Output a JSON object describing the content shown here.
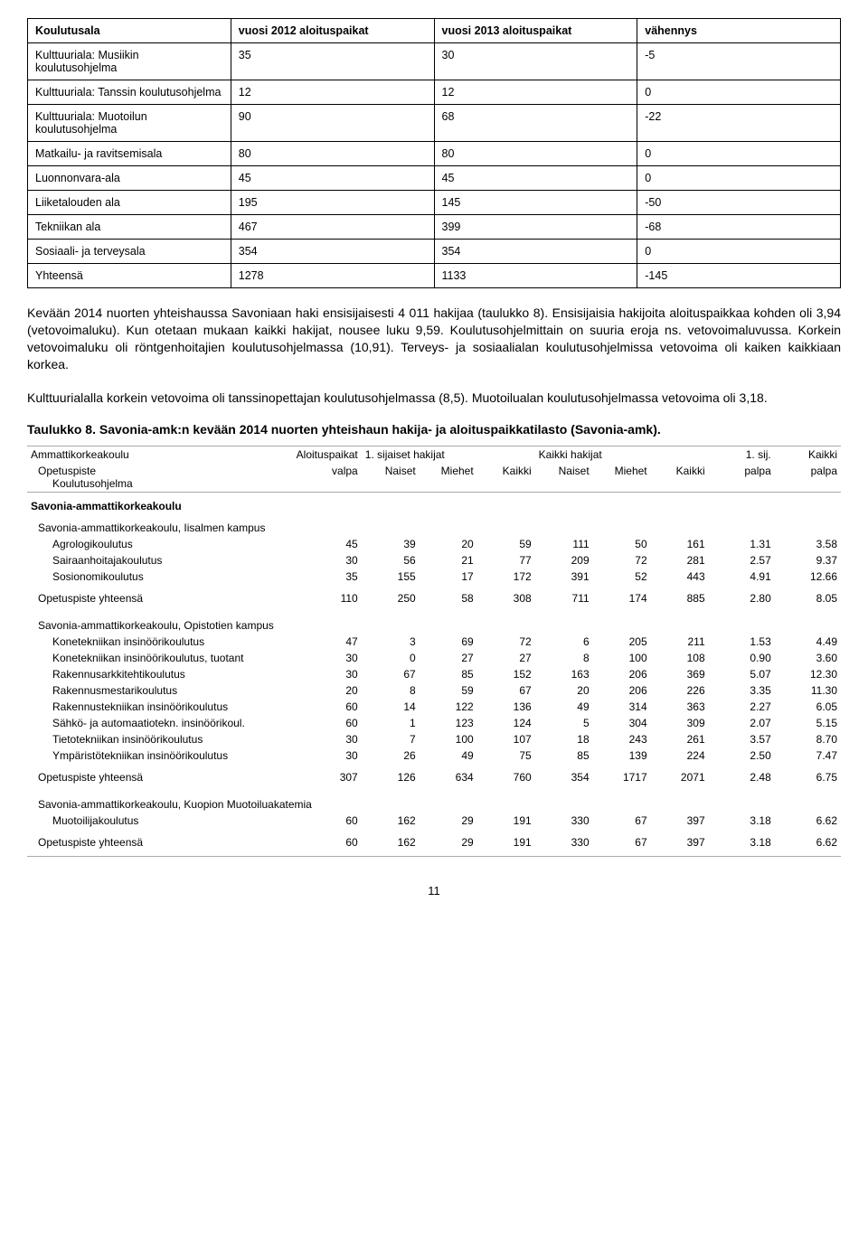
{
  "table1": {
    "columns": [
      "Koulutusala",
      "vuosi 2012 aloituspaikat",
      "vuosi 2013 aloituspaikat",
      "vähennys"
    ],
    "rows": [
      [
        "Kulttuuriala: Musiikin koulutusohjelma",
        "35",
        "30",
        "-5"
      ],
      [
        "Kulttuuriala: Tanssin koulutusohjelma",
        "12",
        "12",
        "0"
      ],
      [
        "Kulttuuriala: Muotoilun koulutusohjelma",
        "90",
        "68",
        "-22"
      ],
      [
        "Matkailu- ja ravitsemisala",
        "80",
        "80",
        "0"
      ],
      [
        "Luonnonvara-ala",
        "45",
        "45",
        "0"
      ],
      [
        "Liiketalouden ala",
        "195",
        "145",
        "-50"
      ],
      [
        "Tekniikan ala",
        "467",
        "399",
        "-68"
      ],
      [
        "Sosiaali- ja terveysala",
        "354",
        "354",
        "0"
      ],
      [
        "Yhteensä",
        "1278",
        "1133",
        "-145"
      ]
    ]
  },
  "para1": "Kevään 2014 nuorten yhteishaussa Savoniaan haki ensisijaisesti 4 011 hakijaa (taulukko 8). Ensisijaisia hakijoita aloituspaikkaa kohden oli 3,94 (vetovoimaluku). Kun otetaan mukaan kaikki hakijat, nousee luku 9,59. Koulutusohjelmittain on suuria eroja ns. vetovoimaluvussa. Korkein vetovoimaluku oli röntgenhoitajien koulutusohjelmassa (10,91). Terveys- ja sosiaalialan koulutusohjelmissa vetovoima oli kaiken kaikkiaan korkea.",
  "para2": "Kulttuurialalla korkein vetovoima oli tanssinopettajan koulutusohjelmassa (8,5). Muotoilualan koulutusohjelmassa vetovoima oli 3,18.",
  "caption": "Taulukko 8. Savonia-amk:n kevään 2014 nuorten yhteishaun hakija- ja aloituspaikkatilasto (Savonia-amk).",
  "table2": {
    "head_lines": {
      "l1": [
        "Ammattikorkeakoulu",
        "Aloituspaikat",
        "1. sijaiset hakijat",
        "",
        "",
        "Kaikki hakijat",
        "",
        "",
        "1. sij.",
        "Kaikki"
      ],
      "l2": [
        "Opetuspiste",
        "valpa",
        "Naiset",
        "Miehet",
        "Kaikki",
        "Naiset",
        "Miehet",
        "Kaikki",
        "palpa",
        "palpa"
      ],
      "l3": "Koulutusohjelma"
    },
    "school": "Savonia-ammattikorkeakoulu",
    "groups": [
      {
        "title": "Savonia-ammattikorkeakoulu, Iisalmen kampus",
        "rows": [
          [
            "Agrologikoulutus",
            "45",
            "39",
            "20",
            "59",
            "111",
            "50",
            "161",
            "1.31",
            "3.58"
          ],
          [
            "Sairaanhoitajakoulutus",
            "30",
            "56",
            "21",
            "77",
            "209",
            "72",
            "281",
            "2.57",
            "9.37"
          ],
          [
            "Sosionomikoulutus",
            "35",
            "155",
            "17",
            "172",
            "391",
            "52",
            "443",
            "4.91",
            "12.66"
          ]
        ],
        "subtotal": [
          "Opetuspiste yhteensä",
          "110",
          "250",
          "58",
          "308",
          "711",
          "174",
          "885",
          "2.80",
          "8.05"
        ]
      },
      {
        "title": "Savonia-ammattikorkeakoulu, Opistotien kampus",
        "rows": [
          [
            "Konetekniikan insinöörikoulutus",
            "47",
            "3",
            "69",
            "72",
            "6",
            "205",
            "211",
            "1.53",
            "4.49"
          ],
          [
            "Konetekniikan insinöörikoulutus, tuotant",
            "30",
            "0",
            "27",
            "27",
            "8",
            "100",
            "108",
            "0.90",
            "3.60"
          ],
          [
            "Rakennusarkkitehtikoulutus",
            "30",
            "67",
            "85",
            "152",
            "163",
            "206",
            "369",
            "5.07",
            "12.30"
          ],
          [
            "Rakennusmestarikoulutus",
            "20",
            "8",
            "59",
            "67",
            "20",
            "206",
            "226",
            "3.35",
            "11.30"
          ],
          [
            "Rakennustekniikan insinöörikoulutus",
            "60",
            "14",
            "122",
            "136",
            "49",
            "314",
            "363",
            "2.27",
            "6.05"
          ],
          [
            "Sähkö- ja automaatiotekn. insinöörikoul.",
            "60",
            "1",
            "123",
            "124",
            "5",
            "304",
            "309",
            "2.07",
            "5.15"
          ],
          [
            "Tietotekniikan insinöörikoulutus",
            "30",
            "7",
            "100",
            "107",
            "18",
            "243",
            "261",
            "3.57",
            "8.70"
          ],
          [
            "Ympäristötekniikan insinöörikoulutus",
            "30",
            "26",
            "49",
            "75",
            "85",
            "139",
            "224",
            "2.50",
            "7.47"
          ]
        ],
        "subtotal": [
          "Opetuspiste yhteensä",
          "307",
          "126",
          "634",
          "760",
          "354",
          "1717",
          "2071",
          "2.48",
          "6.75"
        ]
      },
      {
        "title": "Savonia-ammattikorkeakoulu, Kuopion Muotoiluakatemia",
        "rows": [
          [
            "Muotoilijakoulutus",
            "60",
            "162",
            "29",
            "191",
            "330",
            "67",
            "397",
            "3.18",
            "6.62"
          ]
        ],
        "subtotal": [
          "Opetuspiste yhteensä",
          "60",
          "162",
          "29",
          "191",
          "330",
          "67",
          "397",
          "3.18",
          "6.62"
        ]
      }
    ]
  },
  "pagenum": "11"
}
